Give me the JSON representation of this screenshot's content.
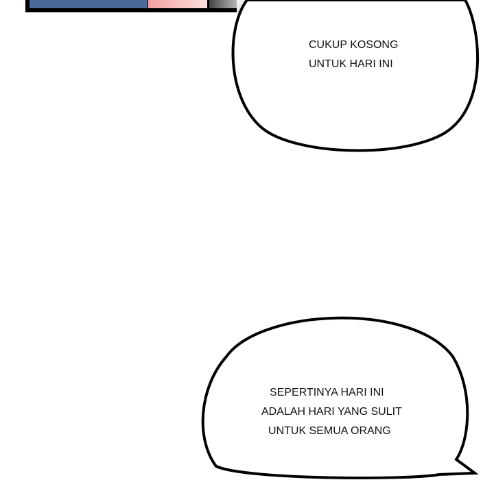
{
  "bubble_1": {
    "lines": [
      "CUKUP KOSONG",
      " UNTUK HARI INI"
    ]
  },
  "bubble_2": {
    "lines": [
      "SEPERTINYA HARI INI",
      "ADALAH HARI YANG SULIT",
      " UNTUK SEMUA ORANG"
    ]
  }
}
